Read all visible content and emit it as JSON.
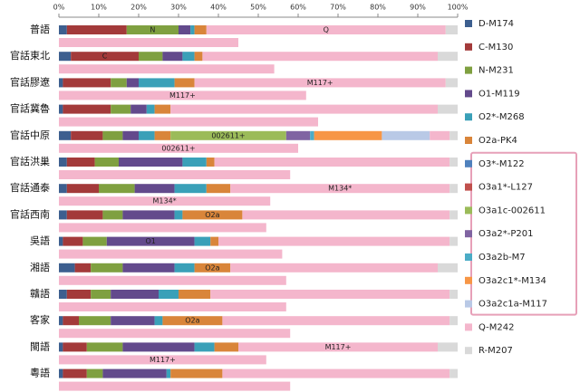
{
  "chart_data": {
    "type": "stacked-bar-horizontal",
    "categories": [
      "普語",
      "官話東北",
      "官話膠遼",
      "官話冀魯",
      "官話中原",
      "官話洪巢",
      "官話通泰",
      "官話西南",
      "吳語",
      "湘語",
      "贛語",
      "客家",
      "閩語",
      "粵語"
    ],
    "series": [
      {
        "name": "D-M174",
        "color": "#3d5f8f",
        "values": [
          2,
          3,
          1,
          1,
          3,
          2,
          2,
          2,
          1,
          4,
          2,
          1,
          1,
          1
        ]
      },
      {
        "name": "C-M130",
        "color": "#a33a3a",
        "values": [
          15,
          17,
          12,
          12,
          8,
          7,
          8,
          9,
          5,
          4,
          6,
          4,
          6,
          6
        ]
      },
      {
        "name": "N-M231",
        "color": "#7fa040",
        "values": [
          13,
          6,
          4,
          5,
          5,
          6,
          9,
          5,
          6,
          8,
          5,
          8,
          9,
          4
        ]
      },
      {
        "name": "O1-M119",
        "color": "#634a8c",
        "values": [
          3,
          5,
          3,
          4,
          4,
          16,
          10,
          13,
          22,
          13,
          12,
          11,
          18,
          16
        ]
      },
      {
        "name": "O2*-M268",
        "color": "#3aa0b8",
        "values": [
          1,
          3,
          9,
          2,
          4,
          6,
          8,
          2,
          4,
          5,
          5,
          2,
          5,
          1
        ]
      },
      {
        "name": "O2a-PK4",
        "color": "#d9853a",
        "values": [
          3,
          2,
          5,
          4,
          4,
          2,
          6,
          15,
          2,
          9,
          8,
          15,
          6,
          13
        ]
      },
      {
        "name": "O3*-M122",
        "color": "#4f81bd",
        "values": [
          0,
          0,
          0,
          0,
          0,
          0,
          0,
          0,
          0,
          0,
          0,
          0,
          0,
          0
        ]
      },
      {
        "name": "O3a1*-L127",
        "color": "#c0504d",
        "values": [
          0,
          0,
          0,
          0,
          0,
          0,
          0,
          0,
          0,
          0,
          0,
          0,
          0,
          0
        ]
      },
      {
        "name": "O3a1c-002611",
        "color": "#9bbb59",
        "values": [
          0,
          0,
          0,
          0,
          29,
          0,
          0,
          0,
          0,
          0,
          0,
          0,
          0,
          0
        ]
      },
      {
        "name": "O3a2*-P201",
        "color": "#8064a2",
        "values": [
          0,
          0,
          0,
          0,
          6,
          0,
          0,
          0,
          0,
          0,
          0,
          0,
          0,
          0
        ]
      },
      {
        "name": "O3a2b-M7",
        "color": "#4bacc6",
        "values": [
          0,
          0,
          0,
          0,
          1,
          0,
          0,
          0,
          0,
          0,
          0,
          0,
          0,
          0
        ]
      },
      {
        "name": "O3a2c1*-M134",
        "color": "#f79646",
        "values": [
          0,
          0,
          0,
          0,
          17,
          0,
          0,
          0,
          0,
          0,
          0,
          0,
          0,
          0
        ]
      },
      {
        "name": "O3a2c1a-M117",
        "color": "#b9c9e6",
        "values": [
          0,
          0,
          0,
          0,
          12,
          0,
          0,
          0,
          0,
          0,
          0,
          0,
          0,
          0
        ]
      },
      {
        "name": "Q-M242",
        "color": "#f4b6cc",
        "values": [
          60,
          59,
          63,
          67,
          5,
          59,
          55,
          52,
          58,
          52,
          60,
          57,
          50,
          57
        ]
      },
      {
        "name": "R-M207",
        "color": "#d9d9d9",
        "values": [
          3,
          5,
          3,
          5,
          2,
          2,
          2,
          2,
          2,
          5,
          2,
          2,
          5,
          2
        ]
      }
    ],
    "secondary_bars": {
      "color": "#f4b6cc",
      "values": [
        45,
        54,
        62,
        65,
        60,
        58,
        53,
        52,
        56,
        57,
        57,
        58,
        52,
        58
      ]
    },
    "annotations": [
      {
        "text": "N",
        "category_index": 0,
        "series_index": 2
      },
      {
        "text": "Q",
        "category_index": 0,
        "series_index": 13
      },
      {
        "text": "C",
        "category_index": 1,
        "series_index": 1
      },
      {
        "text": "M117+",
        "category_index": 2,
        "series_index": 13
      },
      {
        "text": "M117+",
        "category_index": 2,
        "bar": "secondary"
      },
      {
        "text": "002611+",
        "category_index": 4,
        "series_index": 8
      },
      {
        "text": "002611+",
        "category_index": 4,
        "bar": "secondary"
      },
      {
        "text": "M134*",
        "category_index": 6,
        "series_index": 13
      },
      {
        "text": "M134*",
        "category_index": 6,
        "bar": "secondary"
      },
      {
        "text": "O2a",
        "category_index": 7,
        "series_index": 5
      },
      {
        "text": "O1",
        "category_index": 8,
        "series_index": 3
      },
      {
        "text": "O2a",
        "category_index": 9,
        "series_index": 5
      },
      {
        "text": "O2a",
        "category_index": 11,
        "series_index": 5
      },
      {
        "text": "M117+",
        "category_index": 12,
        "series_index": 13
      },
      {
        "text": "M117+",
        "category_index": 12,
        "bar": "secondary"
      }
    ],
    "xlim": [
      0,
      100
    ],
    "xticks": [
      {
        "value": 0,
        "label": "0%"
      },
      {
        "value": 10,
        "label": "10%"
      },
      {
        "value": 20,
        "label": "20%"
      },
      {
        "value": 30,
        "label": "30%"
      },
      {
        "value": 40,
        "label": "40%"
      },
      {
        "value": 50,
        "label": "50%"
      },
      {
        "value": 60,
        "label": "60%"
      },
      {
        "value": 70,
        "label": "70%"
      },
      {
        "value": 80,
        "label": "80%"
      },
      {
        "value": 90,
        "label": "90%"
      },
      {
        "value": 100,
        "label": "100%"
      }
    ],
    "highlight_series": [
      6,
      12
    ]
  }
}
